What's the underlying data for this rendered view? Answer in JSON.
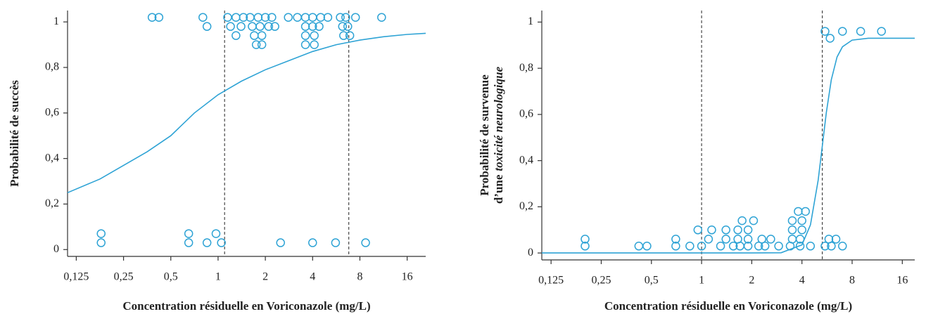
{
  "chart_data": [
    {
      "type": "scatter",
      "log_x": true,
      "color": "#2ea3d5",
      "xlabel": "Concentration résiduelle en Voriconazole (mg/L)",
      "ylabel": [
        [
          "Probabilité de succès"
        ]
      ],
      "xlim": [
        0.11,
        21
      ],
      "ylim": [
        -0.03,
        1.05
      ],
      "xticks": [
        {
          "value": 0.125,
          "label": "0,125"
        },
        {
          "value": 0.25,
          "label": "0,25"
        },
        {
          "value": 0.5,
          "label": "0,5"
        },
        1,
        2,
        4,
        8,
        16
      ],
      "yticks": [
        0,
        {
          "value": 0.2,
          "label": "0,2"
        },
        {
          "value": 0.4,
          "label": "0,4"
        },
        {
          "value": 0.6,
          "label": "0,6"
        },
        {
          "value": 0.8,
          "label": "0,8"
        },
        1
      ],
      "vlines": [
        1.1,
        6.8
      ],
      "points": {
        "x": [
          0.38,
          0.42,
          0.8,
          1.15,
          1.3,
          1.45,
          1.6,
          1.8,
          2.0,
          2.2,
          2.8,
          3.2,
          3.6,
          4.0,
          4.5,
          5.0,
          6.0,
          6.5,
          7.5,
          11,
          0.85,
          1.2,
          1.4,
          1.65,
          1.85,
          2.1,
          2.3,
          3.6,
          4.0,
          4.4,
          6.2,
          6.7,
          1.3,
          1.7,
          1.9,
          3.6,
          4.1,
          6.3,
          6.9,
          1.75,
          1.9,
          3.6,
          4.1,
          0.18,
          0.65,
          0.97,
          0.18,
          0.65,
          0.85,
          1.05,
          2.5,
          4.0,
          5.6,
          8.7
        ],
        "values": [
          1.02,
          1.02,
          1.02,
          1.02,
          1.02,
          1.02,
          1.02,
          1.02,
          1.02,
          1.02,
          1.02,
          1.02,
          1.02,
          1.02,
          1.02,
          1.02,
          1.02,
          1.02,
          1.02,
          1.02,
          0.98,
          0.98,
          0.98,
          0.98,
          0.98,
          0.98,
          0.98,
          0.98,
          0.98,
          0.98,
          0.98,
          0.98,
          0.94,
          0.94,
          0.94,
          0.94,
          0.94,
          0.94,
          0.94,
          0.9,
          0.9,
          0.9,
          0.9,
          0.07,
          0.07,
          0.07,
          0.03,
          0.03,
          0.03,
          0.03,
          0.03,
          0.03,
          0.03,
          0.03
        ]
      },
      "curve": {
        "x": [
          0.11,
          0.177,
          0.25,
          0.354,
          0.5,
          0.707,
          1,
          1.41,
          2,
          2.83,
          4,
          5.66,
          8,
          11.3,
          16,
          21
        ],
        "values": [
          0.25,
          0.31,
          0.37,
          0.43,
          0.5,
          0.6,
          0.68,
          0.74,
          0.79,
          0.83,
          0.87,
          0.9,
          0.92,
          0.935,
          0.945,
          0.95
        ]
      }
    },
    {
      "type": "scatter",
      "log_x": true,
      "color": "#2ea3d5",
      "xlabel": "Concentration résiduelle en Voriconazole (mg/L)",
      "ylabel": [
        [
          "Probabilité de survenue"
        ],
        [
          "d’une",
          "toxicité neurologique"
        ]
      ],
      "xlim": [
        0.11,
        19
      ],
      "ylim": [
        -0.03,
        1.05
      ],
      "xticks": [
        {
          "value": 0.125,
          "label": "0,125"
        },
        {
          "value": 0.25,
          "label": "0,25"
        },
        {
          "value": 0.5,
          "label": "0,5"
        },
        1,
        2,
        4,
        8,
        16
      ],
      "yticks": [
        0,
        {
          "value": 0.2,
          "label": "0,2"
        },
        {
          "value": 0.4,
          "label": "0,4"
        },
        {
          "value": 0.6,
          "label": "0,6"
        },
        {
          "value": 0.8,
          "label": "0,8"
        },
        1
      ],
      "vlines": [
        1,
        5.3
      ],
      "points": {
        "x": [
          0.2,
          0.2,
          0.42,
          0.47,
          0.7,
          0.85,
          1.0,
          1.3,
          1.55,
          1.7,
          1.9,
          2.2,
          2.4,
          2.9,
          3.4,
          3.9,
          4.5,
          5.5,
          6.0,
          7.0,
          0.7,
          1.1,
          1.4,
          1.65,
          1.9,
          2.3,
          2.6,
          3.5,
          3.9,
          5.8,
          6.4,
          0.95,
          1.15,
          1.4,
          1.65,
          1.9,
          3.5,
          4.0,
          1.75,
          2.05,
          3.5,
          4.0,
          3.8,
          4.2,
          5.5,
          7.0,
          9.0,
          12,
          5.9
        ],
        "values": [
          0.06,
          0.03,
          0.03,
          0.03,
          0.03,
          0.03,
          0.03,
          0.03,
          0.03,
          0.03,
          0.03,
          0.03,
          0.03,
          0.03,
          0.03,
          0.03,
          0.03,
          0.03,
          0.03,
          0.03,
          0.06,
          0.06,
          0.06,
          0.06,
          0.06,
          0.06,
          0.06,
          0.06,
          0.06,
          0.06,
          0.06,
          0.1,
          0.1,
          0.1,
          0.1,
          0.1,
          0.1,
          0.1,
          0.14,
          0.14,
          0.14,
          0.14,
          0.18,
          0.18,
          0.96,
          0.96,
          0.96,
          0.96,
          0.93
        ]
      },
      "curve": {
        "x": [
          0.11,
          1,
          2,
          3,
          4,
          4.5,
          5,
          5.3,
          5.6,
          6,
          6.5,
          7,
          8,
          10,
          19
        ],
        "values": [
          0,
          0,
          0,
          0.001,
          0.035,
          0.122,
          0.314,
          0.465,
          0.607,
          0.75,
          0.849,
          0.893,
          0.922,
          0.93,
          0.93
        ]
      }
    }
  ]
}
